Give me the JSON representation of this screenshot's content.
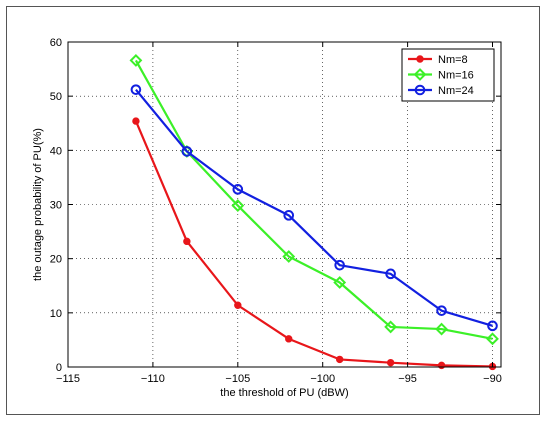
{
  "chart_data": {
    "type": "line",
    "title": "",
    "xlabel": "the threshold of PU (dBW)",
    "ylabel": "the outage probability of PU(%)",
    "xlim": [
      -115,
      -89.5
    ],
    "ylim": [
      0,
      60
    ],
    "xticks": [
      -115,
      -110,
      -105,
      -100,
      -95,
      -90
    ],
    "xtick_labels": [
      "−115",
      "−110",
      "−105",
      "−100",
      "−95",
      "−90"
    ],
    "yticks": [
      0,
      10,
      20,
      30,
      40,
      50,
      60
    ],
    "ytick_labels": [
      "0",
      "10",
      "20",
      "30",
      "40",
      "50",
      "60"
    ],
    "grid": true,
    "legend_position": "top-right",
    "x": [
      -111,
      -108,
      -105,
      -102,
      -99,
      -96,
      -93,
      -90
    ],
    "series": [
      {
        "name": "Nm=8",
        "color": "#e8161a",
        "marker": "dot",
        "values": [
          45.4,
          23.2,
          11.4,
          5.2,
          1.4,
          0.8,
          0.3,
          0.1
        ]
      },
      {
        "name": "Nm=16",
        "color": "#3cf028",
        "marker": "diamond",
        "values": [
          56.6,
          39.8,
          29.8,
          20.4,
          15.6,
          7.4,
          7.0,
          5.2
        ]
      },
      {
        "name": "Nm=24",
        "color": "#1220e0",
        "marker": "circle",
        "values": [
          51.2,
          39.8,
          32.8,
          28.0,
          18.8,
          17.2,
          10.4,
          7.6
        ]
      }
    ]
  }
}
